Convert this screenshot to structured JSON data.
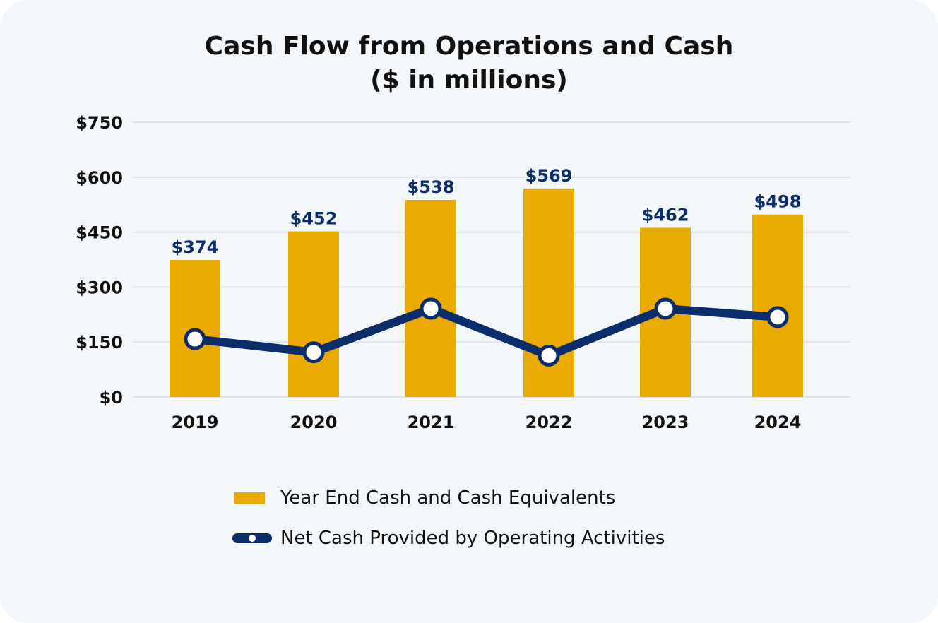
{
  "chart_data": {
    "type": "bar+line",
    "title": "Cash Flow from Operations and Cash",
    "subtitle": "($ in millions)",
    "categories": [
      "2019",
      "2020",
      "2021",
      "2022",
      "2023",
      "2024"
    ],
    "ylim": [
      0,
      750
    ],
    "yticks": [
      0,
      150,
      300,
      450,
      600,
      750
    ],
    "ytick_labels": [
      "$0",
      "$150",
      "$300",
      "$450",
      "$600",
      "$750"
    ],
    "grid": true,
    "series": [
      {
        "name": "Year End Cash and Cash Equivalents",
        "type": "bar",
        "values": [
          374,
          452,
          538,
          569,
          462,
          498
        ],
        "labels": [
          "$374",
          "$452",
          "$538",
          "$569",
          "$462",
          "$498"
        ],
        "color": "#EAAA00"
      },
      {
        "name": "Net Cash Provided by Operating Activities",
        "type": "line",
        "values": [
          158,
          122,
          241,
          113,
          241,
          218
        ],
        "color": "#0C2D6B"
      }
    ],
    "legend_position": "bottom-center"
  },
  "colors": {
    "background": "#f4f7f9",
    "grid": "#dfe3e7",
    "bar": "#EAAA00",
    "line": "#0C2D6B",
    "label": "#0C2D6B",
    "text": "#111111"
  }
}
